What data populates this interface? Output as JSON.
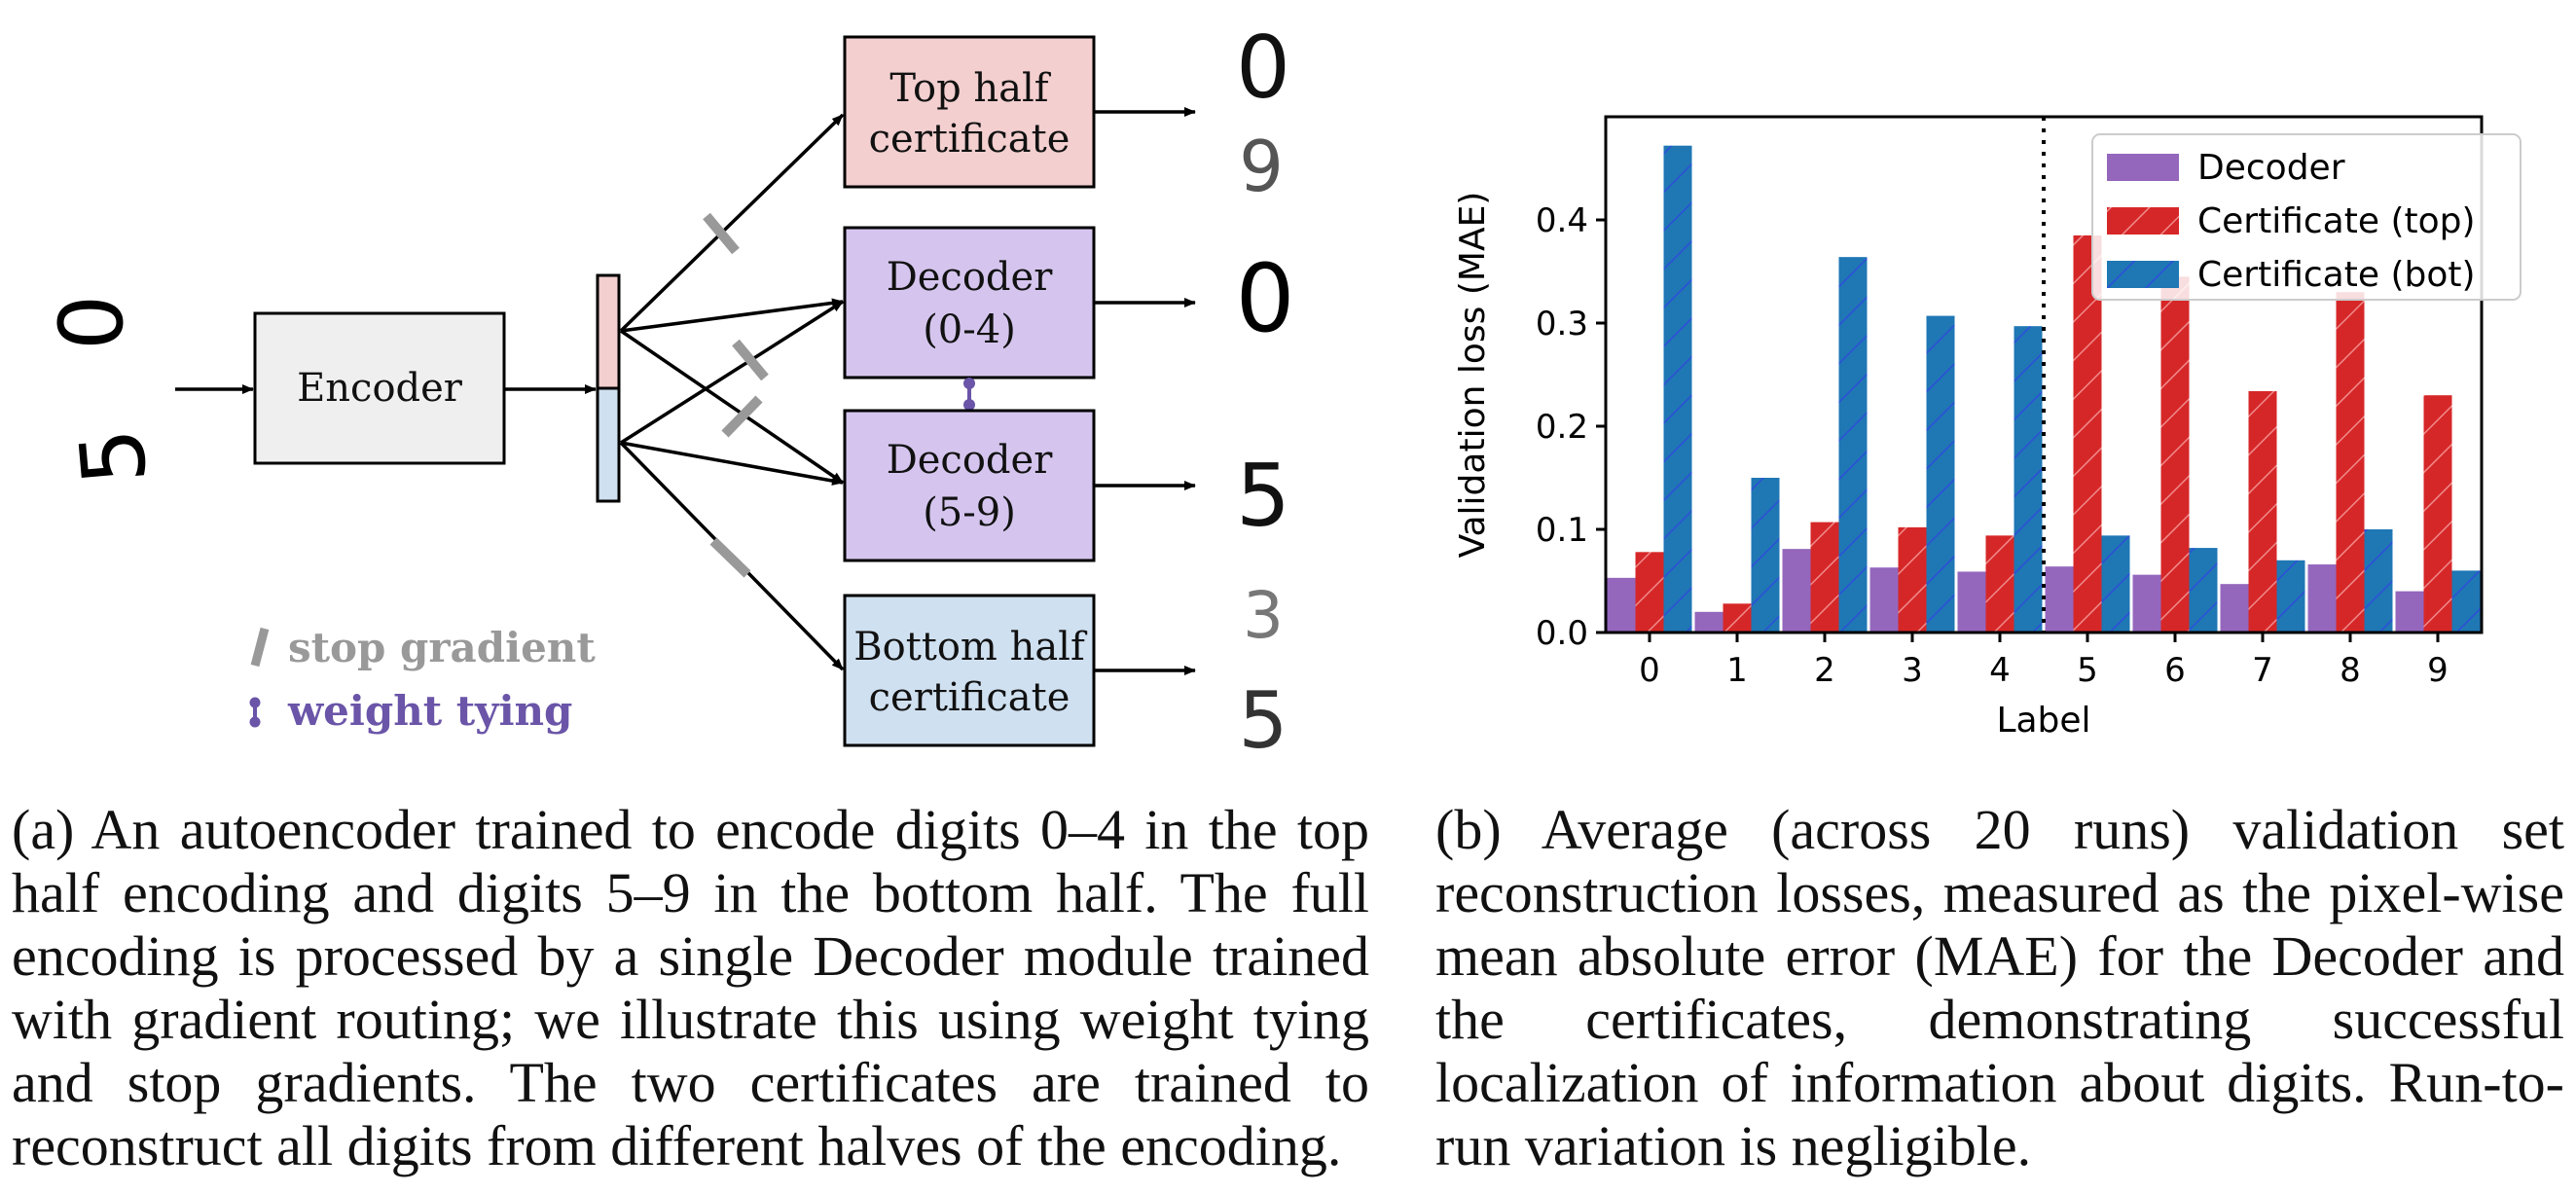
{
  "diagram": {
    "input_digits": [
      "0",
      "5"
    ],
    "encoder_label": "Encoder",
    "top_cert_label": [
      "Top half",
      "certificate"
    ],
    "decoder_top_label": [
      "Decoder",
      "(0-4)"
    ],
    "decoder_bot_label": [
      "Decoder",
      "(5-9)"
    ],
    "bottom_cert_label": [
      "Bottom half",
      "certificate"
    ],
    "output_top_cert": [
      "0",
      "9"
    ],
    "output_decoder_top": "0",
    "output_decoder_bot": "5",
    "output_bottom_cert": [
      "3",
      "5"
    ],
    "legend_stop_gradient": "stop gradient",
    "legend_weight_tying": "weight tying",
    "colors": {
      "top_cert": "#f3cfcf",
      "decoder": "#d5c5ee",
      "bottom_cert": "#cfe0f0",
      "encoder": "#efefef",
      "stop_gradient": "#999999",
      "weight_tying": "#6a55a8"
    }
  },
  "chart_data": {
    "type": "bar",
    "xlabel": "Label",
    "ylabel": "Validation loss (MAE)",
    "categories": [
      "0",
      "1",
      "2",
      "3",
      "4",
      "5",
      "6",
      "7",
      "8",
      "9"
    ],
    "ylim": [
      0,
      0.5
    ],
    "yticks": [
      0.0,
      0.1,
      0.2,
      0.3,
      0.4
    ],
    "ytick_labels": [
      "0.0",
      "0.1",
      "0.2",
      "0.3",
      "0.4"
    ],
    "divider_after_index": 4,
    "legend_position": "top-right",
    "series": [
      {
        "name": "Decoder",
        "color": "#9467bd",
        "hatch": false,
        "values": [
          0.053,
          0.02,
          0.081,
          0.063,
          0.059,
          0.064,
          0.056,
          0.047,
          0.066,
          0.04
        ]
      },
      {
        "name": "Certificate (top)",
        "color": "#d62728",
        "hatch": true,
        "values": [
          0.078,
          0.028,
          0.107,
          0.102,
          0.094,
          0.385,
          0.345,
          0.234,
          0.33,
          0.23
        ]
      },
      {
        "name": "Certificate (bot)",
        "color": "#1f77b4",
        "hatch": true,
        "values": [
          0.472,
          0.15,
          0.364,
          0.307,
          0.297,
          0.094,
          0.082,
          0.07,
          0.1,
          0.06
        ]
      }
    ]
  },
  "captions": {
    "a": "(a) An autoencoder trained to encode digits 0–4 in the top half encoding and digits 5–9 in the bottom half. The full encoding is processed by a single Decoder module trained with gradient routing; we illustrate this using weight tying and stop gradients. The two certificates are trained to reconstruct all digits from different halves of the encoding.",
    "b": "(b) Average (across 20 runs) validation set reconstruction losses, measured as the pixel-wise mean absolute error (MAE) for the Decoder and the certificates, demonstrating successful localization of information about digits. Run-to-run variation is negligible."
  }
}
